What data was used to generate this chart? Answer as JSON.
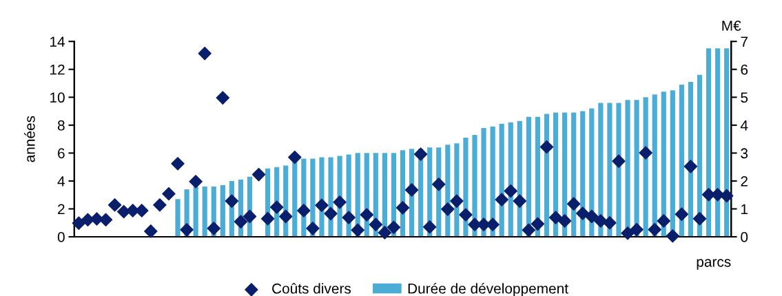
{
  "chart_data": {
    "type": "bar",
    "xlabel": "parcs",
    "ylabel": "années",
    "y2label": "M€",
    "categories": [
      null,
      null,
      null,
      null,
      null,
      null,
      null,
      null,
      null,
      null,
      null,
      null,
      null,
      null,
      null,
      null,
      null,
      null,
      null,
      null,
      null,
      null,
      null,
      null,
      null,
      null,
      null,
      null,
      null,
      null,
      null,
      null,
      null,
      null,
      null,
      null,
      null,
      null,
      null,
      null,
      null,
      null,
      null,
      null,
      null,
      null,
      null,
      null,
      null,
      null,
      null,
      null,
      null,
      null,
      null,
      null,
      null,
      null,
      null,
      null,
      null,
      null,
      null,
      null,
      null,
      null,
      null,
      null,
      null,
      null,
      null,
      null,
      null
    ],
    "series": [
      {
        "name": "Coûts divers",
        "type": "scatter",
        "axis": "y2",
        "color": "#0a1f6b",
        "marker": "diamond",
        "values": [
          0.49,
          0.61,
          0.64,
          0.61,
          1.14,
          0.9,
          0.94,
          0.94,
          0.2,
          1.14,
          1.54,
          2.62,
          0.25,
          1.98,
          6.57,
          0.3,
          4.98,
          1.28,
          0.54,
          0.73,
          2.23,
          0.65,
          1.06,
          0.73,
          2.85,
          0.94,
          0.3,
          1.13,
          0.83,
          1.24,
          0.69,
          0.24,
          0.79,
          0.44,
          0.15,
          0.34,
          1.04,
          1.68,
          2.96,
          0.35,
          1.88,
          0.99,
          1.28,
          0.79,
          0.44,
          0.44,
          0.44,
          1.33,
          1.64,
          1.28,
          0.24,
          0.46,
          3.22,
          0.69,
          0.57,
          1.18,
          0.84,
          0.73,
          0.57,
          0.5,
          2.71,
          0.13,
          0.26,
          3.01,
          0.26,
          0.57,
          0.03,
          0.81,
          2.52,
          0.65,
          1.51,
          1.51,
          1.47
        ]
      },
      {
        "name": "Durée de développement",
        "color": "#4bacd6",
        "values": [
          null,
          null,
          null,
          null,
          null,
          null,
          null,
          null,
          null,
          null,
          null,
          2.7,
          3.4,
          3.6,
          3.6,
          3.6,
          3.7,
          4.0,
          4.1,
          4.3,
          null,
          4.9,
          5.0,
          5.1,
          5.4,
          5.6,
          5.6,
          5.7,
          5.7,
          5.8,
          5.9,
          6.0,
          6.0,
          6.0,
          6.0,
          6.0,
          6.2,
          6.3,
          6.3,
          6.4,
          6.4,
          6.6,
          6.7,
          7.1,
          7.3,
          7.8,
          7.9,
          8.1,
          8.2,
          8.3,
          8.6,
          8.6,
          8.8,
          8.9,
          8.9,
          8.9,
          9.0,
          9.2,
          9.6,
          9.6,
          9.6,
          9.8,
          9.8,
          10.0,
          10.2,
          10.4,
          10.5,
          10.9,
          11.1,
          11.6,
          13.5,
          13.5,
          13.5
        ]
      }
    ],
    "ylim": [
      0,
      14
    ],
    "yticks": [
      0,
      2,
      4,
      6,
      8,
      10,
      12,
      14
    ],
    "y2lim": [
      0,
      7
    ],
    "y2ticks": [
      0,
      1,
      2,
      3,
      4,
      5,
      6,
      7
    ],
    "grid": false,
    "legend": "bottom"
  }
}
